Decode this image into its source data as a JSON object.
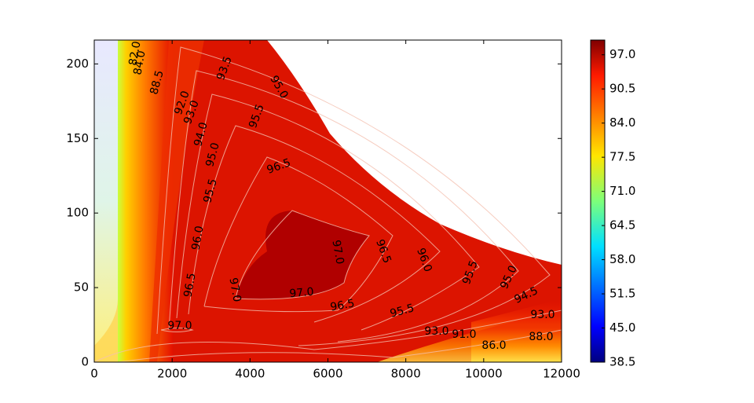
{
  "chart_data": {
    "type": "contour",
    "xlim": [
      0,
      12000
    ],
    "xticks": [
      0,
      2000,
      4000,
      6000,
      8000,
      10000,
      12000
    ],
    "ylim": [
      0,
      216
    ],
    "yticks": [
      0,
      50,
      100,
      150,
      200
    ],
    "clim": [
      38.5,
      99.8
    ],
    "cticks": [
      {
        "value": 38.5,
        "label": "38.5"
      },
      {
        "value": 45,
        "label": "45.0"
      },
      {
        "value": 51.5,
        "label": "51.5"
      },
      {
        "value": 58,
        "label": "58.0"
      },
      {
        "value": 64.5,
        "label": "64.5"
      },
      {
        "value": 71,
        "label": "71.0"
      },
      {
        "value": 77.5,
        "label": "77.5"
      },
      {
        "value": 84,
        "label": "84.0"
      },
      {
        "value": 90.5,
        "label": "90.5"
      },
      {
        "value": 97,
        "label": "97.0"
      }
    ],
    "colormap": "jet",
    "contour_labels": [
      {
        "value": 82,
        "label": "82.0"
      },
      {
        "value": 84,
        "label": "84.0"
      },
      {
        "value": 88.5,
        "label": "88.5"
      },
      {
        "value": 92,
        "label": "92.0"
      },
      {
        "value": 93,
        "label": "93.0"
      },
      {
        "value": 93.5,
        "label": "93.5"
      },
      {
        "value": 95,
        "label": "95.0"
      },
      {
        "value": 95.5,
        "label": "95.5"
      },
      {
        "value": 94,
        "label": "94.0"
      },
      {
        "value": 95,
        "label": "95.0"
      },
      {
        "value": 96.5,
        "label": "96.5"
      },
      {
        "value": 95.5,
        "label": "95.5"
      },
      {
        "value": 96,
        "label": "96.0"
      },
      {
        "value": 97,
        "label": "97.0"
      },
      {
        "value": 96.5,
        "label": "96.5"
      },
      {
        "value": 96,
        "label": "96.0"
      },
      {
        "value": 95.5,
        "label": "95.5"
      },
      {
        "value": 95,
        "label": "95.0"
      },
      {
        "value": 94.5,
        "label": "94.5"
      },
      {
        "value": 96.5,
        "label": "96.5"
      },
      {
        "value": 97,
        "label": "97.0"
      },
      {
        "value": 97,
        "label": "97.0"
      },
      {
        "value": 96.5,
        "label": "96.5"
      },
      {
        "value": 95.5,
        "label": "95.5"
      },
      {
        "value": 93,
        "label": "93.0"
      },
      {
        "value": 91,
        "label": "91.0"
      },
      {
        "value": 86,
        "label": "86.0"
      },
      {
        "value": 88,
        "label": "88.0"
      },
      {
        "value": 93,
        "label": "93.0"
      },
      {
        "value": 97,
        "label": "97.0"
      }
    ]
  }
}
